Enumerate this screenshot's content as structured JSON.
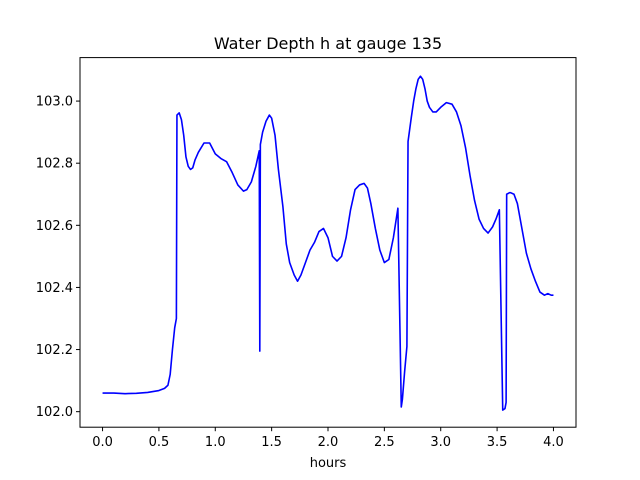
{
  "chart_data": {
    "type": "line",
    "title": "Water Depth h at gauge 135",
    "xlabel": "hours",
    "ylabel": "",
    "xlim": [
      -0.2,
      4.2
    ],
    "ylim": [
      101.95,
      103.14
    ],
    "xticks": [
      0.0,
      0.5,
      1.0,
      1.5,
      2.0,
      2.5,
      3.0,
      3.5,
      4.0
    ],
    "xtick_labels": [
      "0.0",
      "0.5",
      "1.0",
      "1.5",
      "2.0",
      "2.5",
      "3.0",
      "3.5",
      "4.0"
    ],
    "yticks": [
      102.0,
      102.2,
      102.4,
      102.6,
      102.8,
      103.0
    ],
    "ytick_labels": [
      "102.0",
      "102.2",
      "102.4",
      "102.6",
      "102.8",
      "103.0"
    ],
    "grid": false,
    "series": [
      {
        "color": "#0000ff",
        "x": [
          0.0,
          0.1,
          0.2,
          0.3,
          0.4,
          0.5,
          0.55,
          0.58,
          0.6,
          0.62,
          0.64,
          0.655,
          0.66,
          0.68,
          0.7,
          0.72,
          0.74,
          0.76,
          0.78,
          0.8,
          0.82,
          0.85,
          0.9,
          0.95,
          1.0,
          1.05,
          1.1,
          1.15,
          1.2,
          1.25,
          1.28,
          1.32,
          1.36,
          1.39,
          1.395,
          1.4,
          1.42,
          1.45,
          1.48,
          1.5,
          1.53,
          1.56,
          1.6,
          1.63,
          1.66,
          1.7,
          1.73,
          1.76,
          1.8,
          1.84,
          1.88,
          1.92,
          1.96,
          2.0,
          2.04,
          2.08,
          2.12,
          2.16,
          2.2,
          2.24,
          2.28,
          2.32,
          2.35,
          2.38,
          2.42,
          2.46,
          2.5,
          2.54,
          2.58,
          2.62,
          2.65,
          2.66,
          2.68,
          2.7,
          2.71,
          2.74,
          2.76,
          2.78,
          2.8,
          2.82,
          2.84,
          2.86,
          2.88,
          2.9,
          2.93,
          2.96,
          3.0,
          3.05,
          3.1,
          3.14,
          3.18,
          3.22,
          3.26,
          3.3,
          3.34,
          3.38,
          3.42,
          3.46,
          3.49,
          3.52,
          3.55,
          3.57,
          3.58,
          3.585,
          3.61,
          3.62,
          3.65,
          3.68,
          3.7,
          3.73,
          3.76,
          3.8,
          3.84,
          3.88,
          3.92,
          3.95,
          3.98,
          4.0
        ],
        "y": [
          102.06,
          102.06,
          102.058,
          102.059,
          102.062,
          102.068,
          102.075,
          102.085,
          102.12,
          102.2,
          102.27,
          102.3,
          102.955,
          102.962,
          102.94,
          102.89,
          102.82,
          102.79,
          102.78,
          102.785,
          102.81,
          102.835,
          102.865,
          102.865,
          102.83,
          102.815,
          102.805,
          102.77,
          102.73,
          102.71,
          102.715,
          102.74,
          102.79,
          102.84,
          102.195,
          102.86,
          102.9,
          102.935,
          102.955,
          102.945,
          102.89,
          102.78,
          102.66,
          102.54,
          102.48,
          102.44,
          102.42,
          102.44,
          102.48,
          102.52,
          102.545,
          102.58,
          102.59,
          102.56,
          102.5,
          102.485,
          102.5,
          102.56,
          102.65,
          102.715,
          102.73,
          102.735,
          102.72,
          102.67,
          102.59,
          102.52,
          102.48,
          102.49,
          102.56,
          102.655,
          102.015,
          102.04,
          102.13,
          102.21,
          102.87,
          102.95,
          103.0,
          103.04,
          103.07,
          103.08,
          103.07,
          103.04,
          103.0,
          102.98,
          102.965,
          102.965,
          102.98,
          102.995,
          102.99,
          102.965,
          102.92,
          102.85,
          102.76,
          102.68,
          102.62,
          102.59,
          102.575,
          102.595,
          102.62,
          102.65,
          102.005,
          102.01,
          102.03,
          102.7,
          102.705,
          102.705,
          102.7,
          102.67,
          102.63,
          102.57,
          102.51,
          102.46,
          102.42,
          102.385,
          102.375,
          102.38,
          102.375,
          102.375
        ]
      }
    ]
  }
}
